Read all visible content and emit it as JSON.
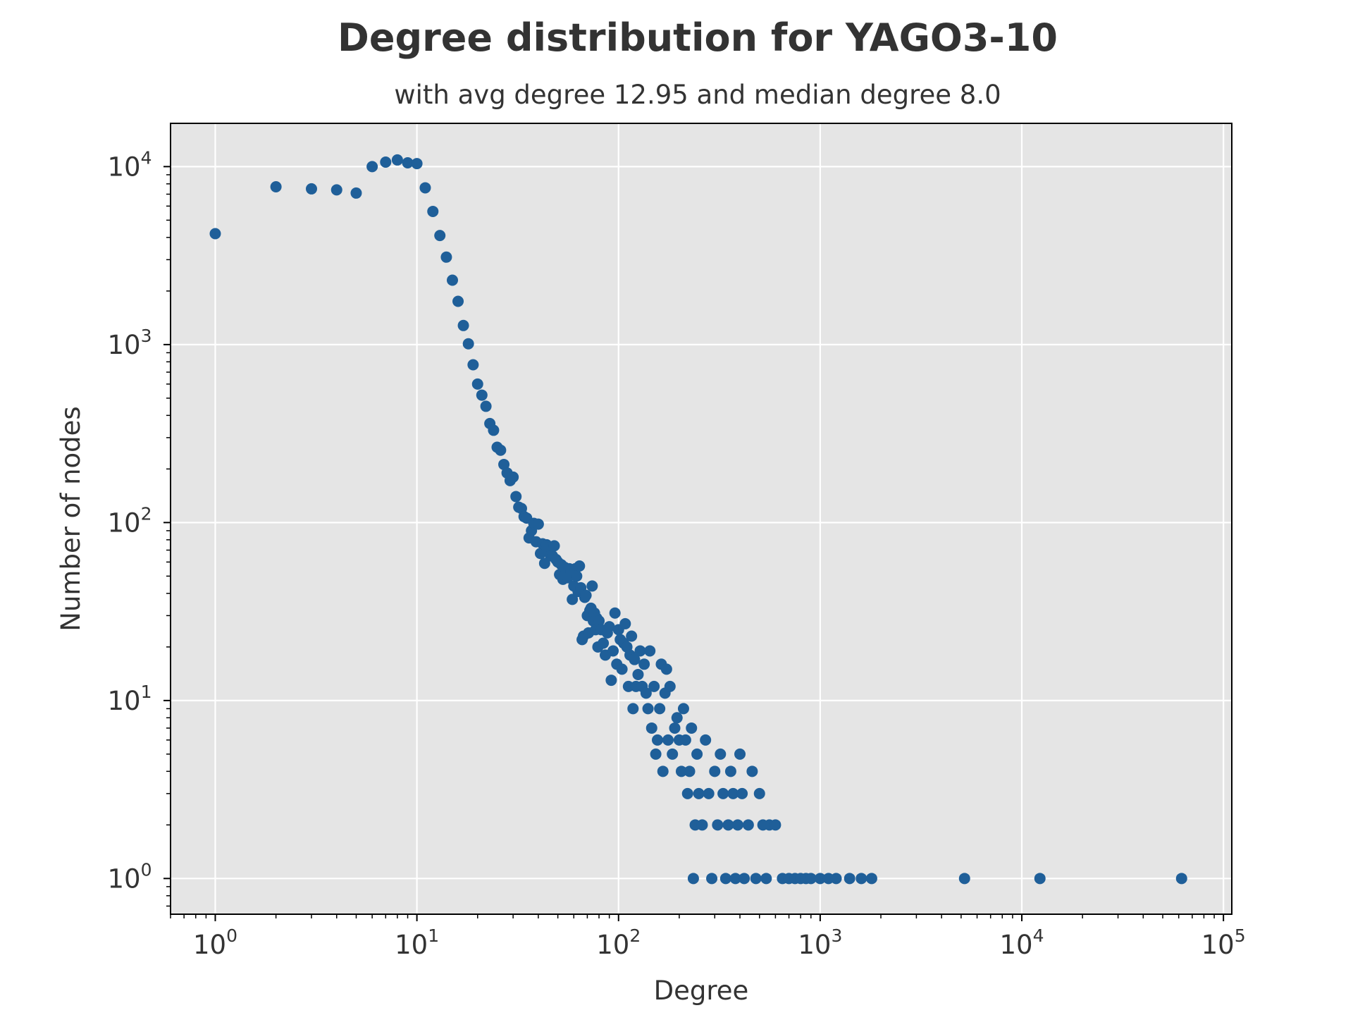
{
  "chart_data": {
    "type": "scatter",
    "title": "Degree distribution for YAGO3-10",
    "subtitle": "with avg degree 12.95 and median degree 8.0",
    "xlabel": "Degree",
    "ylabel": "Number of nodes",
    "xscale": "log",
    "yscale": "log",
    "xlim": [
      0.6,
      110000
    ],
    "ylim": [
      0.63,
      17500
    ],
    "grid": true,
    "background": "#e5e5e5",
    "marker_color": "#1f5f99",
    "x_ticks": [
      {
        "value": 1,
        "base": "10",
        "exp": "0"
      },
      {
        "value": 10,
        "base": "10",
        "exp": "1"
      },
      {
        "value": 100,
        "base": "10",
        "exp": "2"
      },
      {
        "value": 1000,
        "base": "10",
        "exp": "3"
      },
      {
        "value": 10000,
        "base": "10",
        "exp": "4"
      },
      {
        "value": 100000,
        "base": "10",
        "exp": "5"
      }
    ],
    "y_ticks": [
      {
        "value": 1,
        "base": "10",
        "exp": "0"
      },
      {
        "value": 10,
        "base": "10",
        "exp": "1"
      },
      {
        "value": 100,
        "base": "10",
        "exp": "2"
      },
      {
        "value": 1000,
        "base": "10",
        "exp": "3"
      },
      {
        "value": 10000,
        "base": "10",
        "exp": "4"
      }
    ],
    "points": [
      [
        1,
        4200
      ],
      [
        2,
        7700
      ],
      [
        3,
        7500
      ],
      [
        4,
        7400
      ],
      [
        5,
        7100
      ],
      [
        6,
        10000
      ],
      [
        7,
        10600
      ],
      [
        8,
        10900
      ],
      [
        9,
        10500
      ],
      [
        10,
        10400
      ],
      [
        11,
        7600
      ],
      [
        12,
        5600
      ],
      [
        13,
        4100
      ],
      [
        14,
        3100
      ],
      [
        15,
        2300
      ],
      [
        16,
        1750
      ],
      [
        17,
        1280
      ],
      [
        18,
        1010
      ],
      [
        19,
        770
      ],
      [
        20,
        600
      ],
      [
        21,
        520
      ],
      [
        22,
        450
      ],
      [
        23,
        360
      ],
      [
        24,
        330
      ],
      [
        25,
        265
      ],
      [
        26,
        255
      ],
      [
        27,
        212
      ],
      [
        28,
        190
      ],
      [
        29,
        172
      ],
      [
        30,
        180
      ],
      [
        31,
        140
      ],
      [
        32,
        122
      ],
      [
        33,
        120
      ],
      [
        34,
        108
      ],
      [
        35,
        106
      ],
      [
        36,
        82
      ],
      [
        37,
        90
      ],
      [
        38,
        99
      ],
      [
        39,
        78
      ],
      [
        40,
        98
      ],
      [
        41,
        67
      ],
      [
        42,
        76
      ],
      [
        43,
        59
      ],
      [
        44,
        75
      ],
      [
        45,
        72
      ],
      [
        46,
        65
      ],
      [
        47,
        65
      ],
      [
        48,
        74
      ],
      [
        49,
        62
      ],
      [
        50,
        60
      ],
      [
        51,
        51
      ],
      [
        52,
        58
      ],
      [
        53,
        48
      ],
      [
        54,
        56
      ],
      [
        55,
        52
      ],
      [
        56,
        49
      ],
      [
        57,
        55
      ],
      [
        58,
        53
      ],
      [
        59,
        37
      ],
      [
        60,
        44
      ],
      [
        61,
        55
      ],
      [
        62,
        50
      ],
      [
        63,
        41
      ],
      [
        64,
        57
      ],
      [
        65,
        43
      ],
      [
        66,
        22
      ],
      [
        67,
        23
      ],
      [
        68,
        38
      ],
      [
        69,
        39
      ],
      [
        70,
        30
      ],
      [
        71,
        24
      ],
      [
        72,
        32
      ],
      [
        73,
        33
      ],
      [
        74,
        44
      ],
      [
        75,
        28
      ],
      [
        76,
        31
      ],
      [
        77,
        25
      ],
      [
        78,
        29
      ],
      [
        79,
        20
      ],
      [
        80,
        28
      ],
      [
        82,
        25
      ],
      [
        84,
        21
      ],
      [
        86,
        18
      ],
      [
        88,
        24
      ],
      [
        90,
        26
      ],
      [
        92,
        13
      ],
      [
        94,
        19
      ],
      [
        96,
        31
      ],
      [
        98,
        16
      ],
      [
        100,
        25
      ],
      [
        102,
        22
      ],
      [
        104,
        15
      ],
      [
        106,
        21
      ],
      [
        108,
        27
      ],
      [
        110,
        20
      ],
      [
        112,
        12
      ],
      [
        114,
        18
      ],
      [
        116,
        23
      ],
      [
        118,
        9
      ],
      [
        120,
        17
      ],
      [
        122,
        12
      ],
      [
        125,
        14
      ],
      [
        128,
        19
      ],
      [
        131,
        12
      ],
      [
        134,
        16
      ],
      [
        137,
        11
      ],
      [
        140,
        9
      ],
      [
        143,
        19
      ],
      [
        146,
        7
      ],
      [
        150,
        12
      ],
      [
        153,
        5
      ],
      [
        156,
        6
      ],
      [
        160,
        9
      ],
      [
        163,
        16
      ],
      [
        166,
        4
      ],
      [
        170,
        11
      ],
      [
        173,
        15
      ],
      [
        176,
        6
      ],
      [
        180,
        12
      ],
      [
        185,
        5
      ],
      [
        190,
        7
      ],
      [
        195,
        8
      ],
      [
        200,
        6
      ],
      [
        205,
        4
      ],
      [
        210,
        9
      ],
      [
        215,
        6
      ],
      [
        220,
        3
      ],
      [
        225,
        4
      ],
      [
        230,
        7
      ],
      [
        235,
        1
      ],
      [
        240,
        2
      ],
      [
        245,
        5
      ],
      [
        250,
        3
      ],
      [
        260,
        2
      ],
      [
        270,
        6
      ],
      [
        280,
        3
      ],
      [
        290,
        1
      ],
      [
        300,
        4
      ],
      [
        310,
        2
      ],
      [
        320,
        5
      ],
      [
        330,
        3
      ],
      [
        340,
        1
      ],
      [
        350,
        2
      ],
      [
        360,
        4
      ],
      [
        370,
        3
      ],
      [
        380,
        1
      ],
      [
        390,
        2
      ],
      [
        400,
        5
      ],
      [
        410,
        3
      ],
      [
        420,
        1
      ],
      [
        440,
        2
      ],
      [
        460,
        4
      ],
      [
        480,
        1
      ],
      [
        500,
        3
      ],
      [
        520,
        2
      ],
      [
        540,
        1
      ],
      [
        560,
        2
      ],
      [
        600,
        2
      ],
      [
        650,
        1
      ],
      [
        700,
        1
      ],
      [
        750,
        1
      ],
      [
        800,
        1
      ],
      [
        850,
        1
      ],
      [
        900,
        1
      ],
      [
        1000,
        1
      ],
      [
        1100,
        1
      ],
      [
        1200,
        1
      ],
      [
        1400,
        1
      ],
      [
        1600,
        1
      ],
      [
        1800,
        1
      ],
      [
        5200,
        1
      ],
      [
        12300,
        1
      ],
      [
        62000,
        1
      ]
    ]
  }
}
